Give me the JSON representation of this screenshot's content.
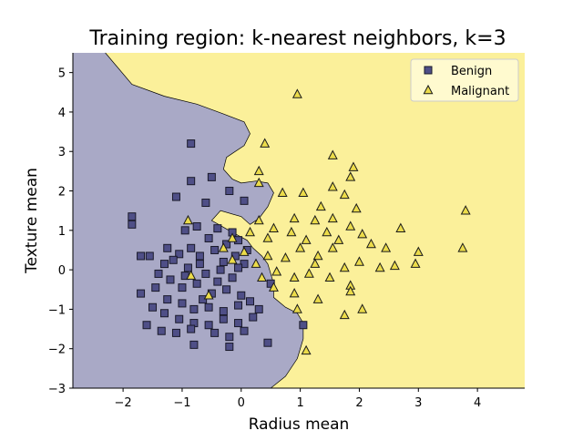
{
  "chart_data": {
    "type": "scatter",
    "title": "Training region: k-nearest neighbors, k=3",
    "xlabel": "Radius mean",
    "ylabel": "Texture mean",
    "xlim": [
      -2.85,
      4.8
    ],
    "ylim": [
      -3.0,
      5.5
    ],
    "x_ticks": [
      -2,
      -1,
      0,
      1,
      2,
      3,
      4
    ],
    "y_ticks": [
      -3,
      -2,
      -1,
      0,
      1,
      2,
      3,
      4,
      5
    ],
    "grid": false,
    "legend_position": "top-right",
    "background_regions": [
      {
        "class": "Benign",
        "color": "#a9a9c6"
      },
      {
        "class": "Malignant",
        "color": "#fbf09a"
      }
    ],
    "decision_boundary": [
      [
        -2.3,
        5.5
      ],
      [
        -1.85,
        4.7
      ],
      [
        -1.3,
        4.4
      ],
      [
        -0.75,
        4.2
      ],
      [
        -0.3,
        3.95
      ],
      [
        0.05,
        3.75
      ],
      [
        0.15,
        3.45
      ],
      [
        0.05,
        3.15
      ],
      [
        -0.25,
        2.85
      ],
      [
        -0.3,
        2.55
      ],
      [
        -0.15,
        2.3
      ],
      [
        0.0,
        2.2
      ],
      [
        0.25,
        2.25
      ],
      [
        0.45,
        2.2
      ],
      [
        0.55,
        1.95
      ],
      [
        0.45,
        1.6
      ],
      [
        0.3,
        1.3
      ],
      [
        0.15,
        1.15
      ],
      [
        0.0,
        1.35
      ],
      [
        -0.35,
        1.5
      ],
      [
        -0.5,
        1.25
      ],
      [
        -0.15,
        0.95
      ],
      [
        0.1,
        0.75
      ],
      [
        0.2,
        0.55
      ],
      [
        0.35,
        0.35
      ],
      [
        0.45,
        0.15
      ],
      [
        0.5,
        -0.1
      ],
      [
        0.55,
        -0.35
      ],
      [
        0.55,
        -0.7
      ],
      [
        0.75,
        -0.95
      ],
      [
        0.95,
        -1.1
      ],
      [
        1.05,
        -1.35
      ],
      [
        1.05,
        -1.75
      ],
      [
        0.95,
        -2.25
      ],
      [
        0.75,
        -2.7
      ],
      [
        0.5,
        -3.0
      ]
    ],
    "series": [
      {
        "name": "Benign",
        "marker": "square",
        "color": "#4f4f87",
        "points": [
          [
            -1.85,
            1.35
          ],
          [
            -1.85,
            1.15
          ],
          [
            -0.85,
            3.2
          ],
          [
            -1.1,
            1.85
          ],
          [
            -0.85,
            2.25
          ],
          [
            -0.5,
            2.35
          ],
          [
            -0.2,
            2.0
          ],
          [
            0.05,
            1.75
          ],
          [
            -0.6,
            1.7
          ],
          [
            -0.75,
            1.1
          ],
          [
            -0.4,
            1.05
          ],
          [
            -0.15,
            0.95
          ],
          [
            -0.05,
            0.75
          ],
          [
            -0.95,
            1.0
          ],
          [
            -1.25,
            0.55
          ],
          [
            -1.55,
            0.35
          ],
          [
            -1.3,
            0.15
          ],
          [
            -1.05,
            0.4
          ],
          [
            -0.85,
            0.55
          ],
          [
            -0.7,
            0.35
          ],
          [
            -0.45,
            0.5
          ],
          [
            -0.3,
            0.2
          ],
          [
            -0.1,
            0.35
          ],
          [
            0.05,
            0.15
          ],
          [
            -0.9,
            0.05
          ],
          [
            -0.6,
            -0.1
          ],
          [
            -0.35,
            0.0
          ],
          [
            -0.15,
            -0.2
          ],
          [
            -1.2,
            -0.25
          ],
          [
            -1.45,
            -0.45
          ],
          [
            -1.7,
            -0.6
          ],
          [
            -1.0,
            -0.45
          ],
          [
            -0.75,
            -0.35
          ],
          [
            -0.5,
            -0.6
          ],
          [
            -0.25,
            -0.5
          ],
          [
            0.0,
            -0.65
          ],
          [
            -1.25,
            -0.75
          ],
          [
            -1.0,
            -0.85
          ],
          [
            -0.8,
            -1.0
          ],
          [
            -0.55,
            -0.95
          ],
          [
            -0.3,
            -1.05
          ],
          [
            -0.05,
            -0.9
          ],
          [
            0.15,
            -0.8
          ],
          [
            -1.3,
            -1.1
          ],
          [
            -1.05,
            -1.25
          ],
          [
            -0.8,
            -1.35
          ],
          [
            -0.55,
            -1.4
          ],
          [
            -0.3,
            -1.25
          ],
          [
            -0.05,
            -1.35
          ],
          [
            0.2,
            -1.2
          ],
          [
            -1.6,
            -1.4
          ],
          [
            -1.35,
            -1.55
          ],
          [
            -1.1,
            -1.6
          ],
          [
            -0.85,
            -1.5
          ],
          [
            -0.45,
            -1.6
          ],
          [
            -0.2,
            -1.7
          ],
          [
            0.05,
            -1.55
          ],
          [
            -0.8,
            -1.9
          ],
          [
            -0.2,
            -1.95
          ],
          [
            0.45,
            -1.85
          ],
          [
            0.5,
            -0.35
          ],
          [
            0.1,
            0.5
          ],
          [
            -0.55,
            0.8
          ],
          [
            -0.25,
            0.65
          ],
          [
            -1.5,
            -0.95
          ],
          [
            -0.65,
            -0.75
          ],
          [
            -0.4,
            -0.3
          ],
          [
            -0.95,
            -0.15
          ],
          [
            0.3,
            -1.0
          ],
          [
            1.05,
            -1.4
          ],
          [
            -1.7,
            0.35
          ],
          [
            -1.4,
            -0.1
          ],
          [
            -0.7,
            0.15
          ],
          [
            -0.05,
            0.05
          ],
          [
            -1.15,
            0.25
          ]
        ]
      },
      {
        "name": "Malignant",
        "marker": "triangle",
        "color": "#ecdc4a",
        "points": [
          [
            0.95,
            4.45
          ],
          [
            0.4,
            3.2
          ],
          [
            0.3,
            2.5
          ],
          [
            0.3,
            2.2
          ],
          [
            0.7,
            1.95
          ],
          [
            1.05,
            1.95
          ],
          [
            1.55,
            2.9
          ],
          [
            1.9,
            2.6
          ],
          [
            1.85,
            2.35
          ],
          [
            1.55,
            2.1
          ],
          [
            1.75,
            1.9
          ],
          [
            1.35,
            1.6
          ],
          [
            1.55,
            1.3
          ],
          [
            1.25,
            1.25
          ],
          [
            0.9,
            1.3
          ],
          [
            0.55,
            1.05
          ],
          [
            0.3,
            1.25
          ],
          [
            0.15,
            0.95
          ],
          [
            0.45,
            0.8
          ],
          [
            0.85,
            0.95
          ],
          [
            1.1,
            0.75
          ],
          [
            1.45,
            0.95
          ],
          [
            1.85,
            1.1
          ],
          [
            2.05,
            0.9
          ],
          [
            2.2,
            0.65
          ],
          [
            1.55,
            0.55
          ],
          [
            1.3,
            0.35
          ],
          [
            1.0,
            0.55
          ],
          [
            0.75,
            0.3
          ],
          [
            0.45,
            0.35
          ],
          [
            0.25,
            0.15
          ],
          [
            0.35,
            -0.2
          ],
          [
            0.6,
            -0.05
          ],
          [
            0.9,
            -0.2
          ],
          [
            1.15,
            -0.1
          ],
          [
            1.5,
            -0.2
          ],
          [
            1.75,
            0.05
          ],
          [
            2.0,
            0.2
          ],
          [
            2.35,
            0.05
          ],
          [
            2.6,
            0.1
          ],
          [
            2.95,
            0.15
          ],
          [
            3.0,
            0.45
          ],
          [
            2.7,
            1.05
          ],
          [
            3.75,
            0.55
          ],
          [
            3.8,
            1.5
          ],
          [
            0.55,
            -0.45
          ],
          [
            0.9,
            -0.6
          ],
          [
            1.3,
            -0.75
          ],
          [
            1.85,
            -0.4
          ],
          [
            1.85,
            -0.55
          ],
          [
            2.05,
            -1.0
          ],
          [
            1.75,
            -1.15
          ],
          [
            1.1,
            -2.05
          ],
          [
            0.95,
            -1.0
          ],
          [
            -0.85,
            -0.15
          ],
          [
            -0.55,
            -0.65
          ],
          [
            -0.15,
            0.25
          ],
          [
            -0.3,
            0.55
          ],
          [
            0.05,
            0.45
          ],
          [
            -0.9,
            1.25
          ],
          [
            -0.15,
            0.8
          ],
          [
            1.95,
            1.55
          ],
          [
            1.65,
            0.75
          ],
          [
            1.25,
            0.15
          ],
          [
            2.45,
            0.55
          ]
        ]
      }
    ]
  }
}
